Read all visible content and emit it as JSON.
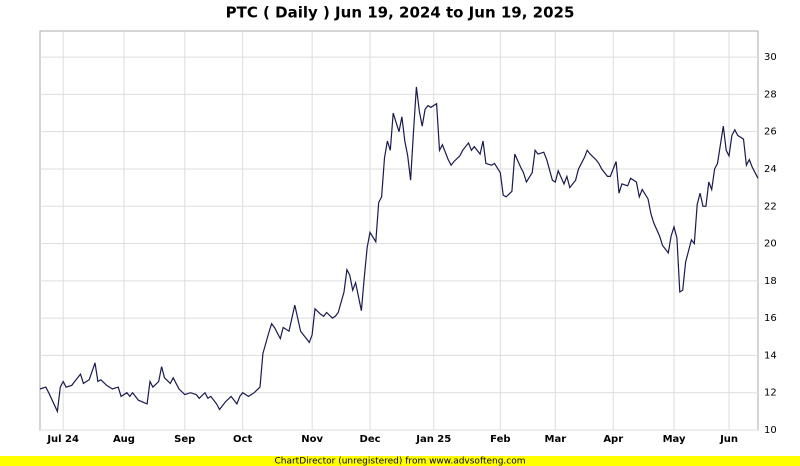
{
  "chart_data": {
    "type": "line",
    "title": "PTC ( Daily ) Jun 19, 2024 to Jun 19, 2025",
    "footer": "ChartDirector (unregistered) from www.advsofteng.com",
    "x": [
      0,
      2,
      3,
      6,
      7,
      8,
      9,
      11,
      12,
      14,
      15,
      17,
      19,
      20,
      21,
      23,
      25,
      27,
      28,
      30,
      31,
      32,
      34,
      37,
      38,
      39,
      41,
      42,
      43,
      45,
      46,
      48,
      50,
      52,
      54,
      55,
      57,
      58,
      59,
      61,
      62,
      64,
      66,
      68,
      69,
      70,
      72,
      74,
      76,
      77,
      79,
      80,
      81,
      83,
      84,
      86,
      87,
      88,
      89,
      90,
      92,
      93,
      94,
      95,
      97,
      98,
      99,
      101,
      102,
      103,
      105,
      106,
      107,
      108,
      109,
      111,
      112,
      113,
      114,
      116,
      117,
      118,
      119,
      120,
      121,
      122,
      123,
      124,
      125,
      126,
      127,
      128,
      129,
      130,
      131,
      132,
      133,
      134,
      135,
      137,
      138,
      139,
      141,
      142,
      143,
      145,
      146,
      148,
      149,
      150,
      152,
      153,
      154,
      156,
      157,
      159,
      160,
      161,
      163,
      164,
      166,
      167,
      168,
      170,
      171,
      172,
      174,
      175,
      177,
      178,
      179,
      181,
      182,
      183,
      185,
      186,
      188,
      189,
      190,
      192,
      193,
      194,
      196,
      197,
      199,
      200,
      201,
      203,
      204,
      206,
      207,
      208,
      210,
      211,
      212,
      214,
      215,
      217,
      218,
      219,
      220,
      221,
      222,
      223,
      225,
      226,
      227,
      228,
      229,
      230,
      231,
      232,
      233,
      234,
      236,
      237,
      238,
      239,
      240,
      241,
      243,
      244,
      245,
      246,
      248
    ],
    "series": [
      {
        "name": "PTC",
        "color": "#1a1a4e",
        "values": [
          12.2,
          12.3,
          12.0,
          11.0,
          12.3,
          12.6,
          12.3,
          12.4,
          12.6,
          13.0,
          12.5,
          12.7,
          13.6,
          12.6,
          12.7,
          12.4,
          12.2,
          12.3,
          11.8,
          12.0,
          11.8,
          12.0,
          11.6,
          11.4,
          12.6,
          12.3,
          12.6,
          13.4,
          12.8,
          12.5,
          12.8,
          12.2,
          11.9,
          12.0,
          11.9,
          11.7,
          12.0,
          11.7,
          11.8,
          11.4,
          11.1,
          11.5,
          11.8,
          11.4,
          11.8,
          12.0,
          11.8,
          12.0,
          12.3,
          14.1,
          15.2,
          15.7,
          15.5,
          14.9,
          15.5,
          15.3,
          16.0,
          16.7,
          16.0,
          15.3,
          14.9,
          14.7,
          15.1,
          16.5,
          16.2,
          16.1,
          16.3,
          16.0,
          16.1,
          16.3,
          17.4,
          18.6,
          18.3,
          17.5,
          17.9,
          16.4,
          18.2,
          19.8,
          20.6,
          20.1,
          22.2,
          22.5,
          24.6,
          25.5,
          25.0,
          27.0,
          26.5,
          26.0,
          26.8,
          25.5,
          24.7,
          23.4,
          26.0,
          28.4,
          27.1,
          26.3,
          27.2,
          27.4,
          27.3,
          27.5,
          25.0,
          25.3,
          24.5,
          24.2,
          24.4,
          24.7,
          25.0,
          25.4,
          25.0,
          25.2,
          24.8,
          25.5,
          24.3,
          24.2,
          24.3,
          23.8,
          22.6,
          22.5,
          22.8,
          24.8,
          24.1,
          23.8,
          23.3,
          23.8,
          25.0,
          24.8,
          24.9,
          24.5,
          23.4,
          23.3,
          23.9,
          23.2,
          23.6,
          23.0,
          23.4,
          24.0,
          24.6,
          25.0,
          24.8,
          24.5,
          24.3,
          24.0,
          23.6,
          23.6,
          24.4,
          22.7,
          23.2,
          23.1,
          23.5,
          23.3,
          22.5,
          22.9,
          22.4,
          21.6,
          21.1,
          20.4,
          19.9,
          19.5,
          20.4,
          20.9,
          20.3,
          17.4,
          17.5,
          19.0,
          20.2,
          20.0,
          22.1,
          22.7,
          22.0,
          22.0,
          23.3,
          22.9,
          24.0,
          24.3,
          26.3,
          25.0,
          24.7,
          25.8,
          26.1,
          25.8,
          25.6,
          24.2,
          24.5,
          24.1,
          23.5
        ]
      }
    ],
    "xlim": [
      0,
      248
    ],
    "xticks": [
      {
        "value": 8,
        "label": "Jul 24"
      },
      {
        "value": 29,
        "label": "Aug"
      },
      {
        "value": 50,
        "label": "Sep"
      },
      {
        "value": 70,
        "label": "Oct"
      },
      {
        "value": 94,
        "label": "Nov"
      },
      {
        "value": 114,
        "label": "Dec"
      },
      {
        "value": 136,
        "label": "Jan 25"
      },
      {
        "value": 159,
        "label": "Feb"
      },
      {
        "value": 178,
        "label": "Mar"
      },
      {
        "value": 198,
        "label": "Apr"
      },
      {
        "value": 219,
        "label": "May"
      },
      {
        "value": 238,
        "label": "Jun"
      }
    ],
    "ylim": [
      10,
      31.4
    ],
    "yticks": [
      10,
      12,
      14,
      16,
      18,
      20,
      22,
      24,
      26,
      28,
      30
    ],
    "grid": true
  }
}
